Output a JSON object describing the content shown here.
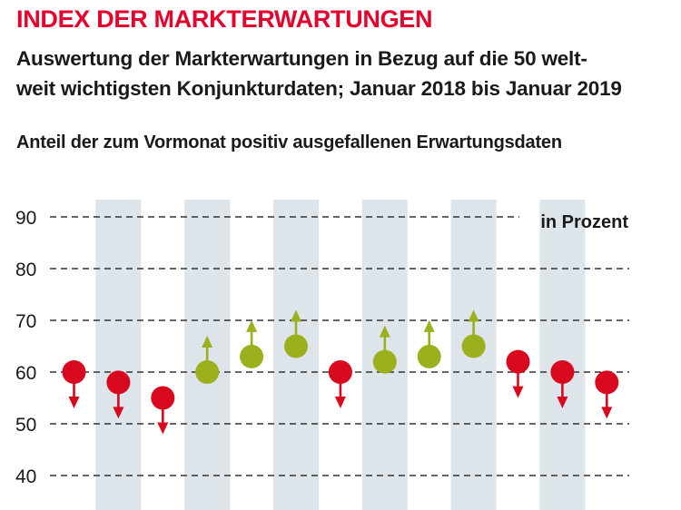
{
  "header": {
    "title": "INDEX DER MARKTERWARTUNGEN",
    "subtitle_line1": "Auswertung der Markterwartungen in Bezug auf die 50 welt-",
    "subtitle_line2": "weit wichtigsten Konjunkturdaten; Januar 2018 bis Januar 2019",
    "caption": "Anteil der zum Vormonat positiv ausgefallenen Erwartungsdaten"
  },
  "colors": {
    "up": "#9caf1c",
    "down": "#d8081f",
    "band": "#dde4ea",
    "grid": "#333333",
    "text": "#1a1a1a"
  },
  "chart_data": {
    "type": "scatter",
    "unit_label": "in Prozent",
    "yticks": [
      40,
      50,
      60,
      70,
      80,
      90
    ],
    "ylim": [
      40,
      90
    ],
    "grid": "dashed-horizontal",
    "values": [
      60,
      58,
      55,
      60,
      63,
      65,
      60,
      62,
      63,
      65,
      62,
      60,
      58
    ],
    "directions": [
      "down",
      "down",
      "down",
      "up",
      "up",
      "up",
      "down",
      "up",
      "up",
      "up",
      "down",
      "down",
      "down"
    ]
  }
}
